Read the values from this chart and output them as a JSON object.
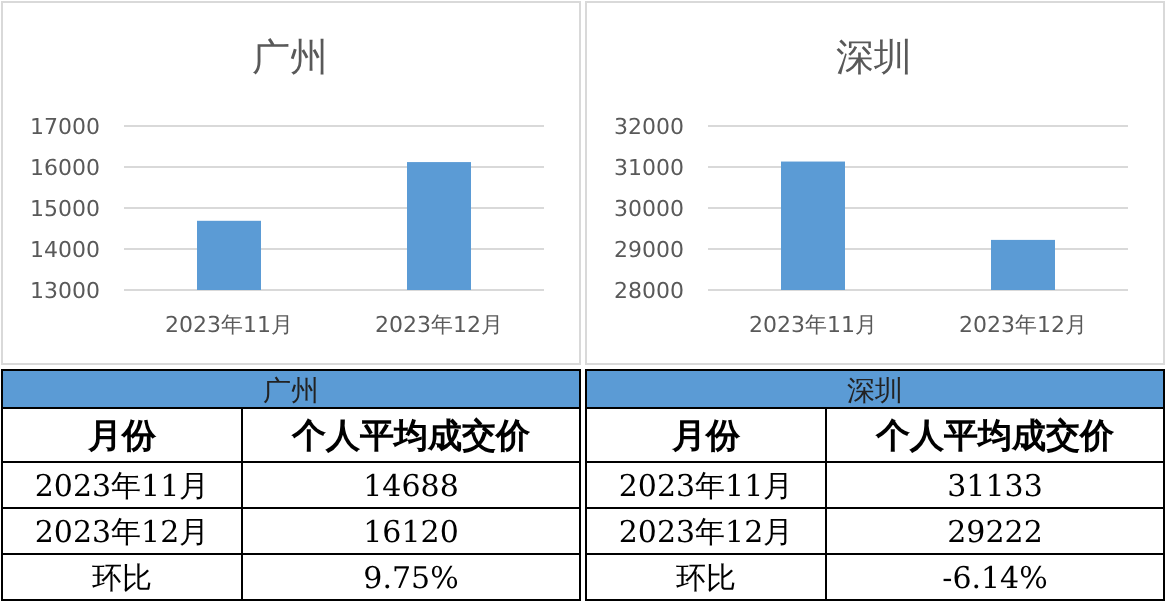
{
  "chart_data": [
    {
      "type": "bar",
      "title": "广州",
      "categories": [
        "2023年11月",
        "2023年12月"
      ],
      "values": [
        14688,
        16120
      ],
      "color": "#5b9bd5",
      "ylim": [
        13000,
        17000
      ],
      "yticks": [
        13000,
        14000,
        15000,
        16000,
        17000
      ],
      "grid": "y",
      "annotations": [
        "月份",
        "个人平均成交价",
        "14688",
        "16120",
        "环比",
        "9.75%"
      ]
    },
    {
      "type": "bar",
      "title": "深圳",
      "categories": [
        "2023年11月",
        "2023年12月"
      ],
      "values": [
        31133,
        29222
      ],
      "color": "#5b9bd5",
      "ylim": [
        28000,
        32000
      ],
      "yticks": [
        28000,
        29000,
        30000,
        31000,
        32000
      ],
      "grid": "y",
      "annotations": [
        "月份",
        "个人平均成交价",
        "31133",
        "29222",
        "环比",
        "-6.14%"
      ]
    }
  ]
}
